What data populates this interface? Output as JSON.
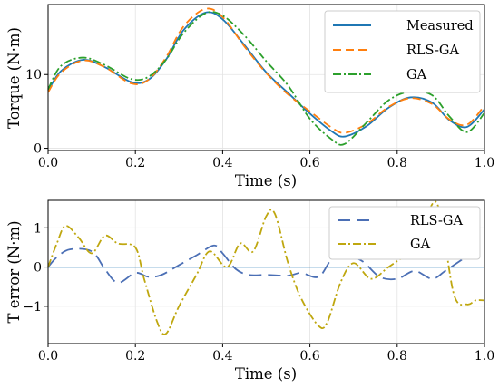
{
  "chart_data": [
    {
      "type": "line",
      "xlabel": "Time (s)",
      "ylabel": "Torque (N·m)",
      "xlim": [
        0,
        1
      ],
      "ylim": [
        -0.3,
        19.5
      ],
      "xticks": [
        0.0,
        0.2,
        0.4,
        0.6,
        0.8,
        1.0
      ],
      "xtick_labels": [
        "0.0",
        "0.2",
        "0.4",
        "0.6",
        "0.8",
        "1.0"
      ],
      "yticks": [
        0,
        10
      ],
      "ytick_labels": [
        "0",
        "10"
      ],
      "grid": true,
      "legend_position": "top-right",
      "x": [
        0.0,
        0.03,
        0.08,
        0.13,
        0.19,
        0.23,
        0.27,
        0.31,
        0.36,
        0.4,
        0.45,
        0.5,
        0.55,
        0.6,
        0.65,
        0.68,
        0.73,
        0.78,
        0.83,
        0.88,
        0.92,
        0.96,
        1.0
      ],
      "series": [
        {
          "name": "Measured",
          "color": "#1f77b4",
          "dash": "solid",
          "values": [
            7.8,
            10.5,
            12.0,
            11.0,
            9.0,
            9.3,
            12.0,
            16.0,
            18.4,
            17.5,
            14.0,
            10.3,
            7.5,
            4.7,
            2.3,
            1.6,
            3.0,
            5.5,
            6.9,
            6.2,
            3.8,
            2.9,
            5.3
          ]
        },
        {
          "name": "RLS-GA",
          "color": "#ff7f0e",
          "dash": "9,5",
          "values": [
            7.6,
            10.3,
            11.9,
            11.0,
            8.8,
            9.3,
            12.3,
            16.5,
            18.9,
            17.8,
            13.8,
            10.2,
            7.3,
            5.0,
            2.8,
            2.1,
            3.3,
            5.6,
            6.8,
            6.0,
            3.9,
            3.2,
            5.8
          ]
        },
        {
          "name": "GA",
          "color": "#2ca02c",
          "dash": "9,3,2,3",
          "values": [
            8.0,
            11.2,
            12.3,
            11.3,
            9.4,
            9.7,
            12.0,
            15.6,
            18.3,
            18.0,
            15.3,
            11.8,
            8.5,
            4.0,
            1.2,
            0.6,
            3.5,
            6.5,
            7.7,
            7.2,
            4.3,
            2.2,
            4.8
          ]
        }
      ]
    },
    {
      "type": "line",
      "xlabel": "Time (s)",
      "ylabel": "T error (N·m)",
      "xlim": [
        0,
        1
      ],
      "ylim": [
        -1.95,
        1.7
      ],
      "xticks": [
        0.0,
        0.2,
        0.4,
        0.6,
        0.8,
        1.0
      ],
      "xtick_labels": [
        "0.0",
        "0.2",
        "0.4",
        "0.6",
        "0.8",
        "1.0"
      ],
      "yticks": [
        -1,
        0,
        1
      ],
      "ytick_labels": [
        "−1",
        "0",
        "1"
      ],
      "grid": true,
      "legend_position": "top-right",
      "zero_line_color": "#1f77b4",
      "series": [
        {
          "name": "RLS-GA",
          "color": "#4b6fb5",
          "dash": "14,7",
          "x": [
            0.0,
            0.02,
            0.05,
            0.1,
            0.13,
            0.16,
            0.2,
            0.23,
            0.26,
            0.3,
            0.34,
            0.38,
            0.4,
            0.43,
            0.46,
            0.5,
            0.55,
            0.58,
            0.62,
            0.65,
            0.68,
            0.72,
            0.76,
            0.8,
            0.84,
            0.88,
            0.91,
            0.95,
            0.98,
            1.0
          ],
          "values": [
            0.0,
            0.25,
            0.45,
            0.4,
            -0.05,
            -0.4,
            -0.15,
            -0.25,
            -0.2,
            0.05,
            0.3,
            0.55,
            0.35,
            -0.05,
            -0.2,
            -0.2,
            -0.22,
            -0.15,
            -0.25,
            0.2,
            0.3,
            0.15,
            -0.25,
            -0.3,
            -0.1,
            -0.3,
            -0.1,
            0.2,
            0.4,
            0.5
          ]
        },
        {
          "name": "GA",
          "color": "#bfa70f",
          "dash": "9,3,2,3",
          "x": [
            0.0,
            0.02,
            0.04,
            0.07,
            0.1,
            0.13,
            0.16,
            0.2,
            0.22,
            0.25,
            0.27,
            0.3,
            0.34,
            0.37,
            0.41,
            0.44,
            0.47,
            0.5,
            0.52,
            0.55,
            0.58,
            0.62,
            0.64,
            0.67,
            0.7,
            0.74,
            0.78,
            0.82,
            0.85,
            0.88,
            0.9,
            0.93,
            0.96,
            0.98,
            1.0
          ],
          "values": [
            0.0,
            0.6,
            1.05,
            0.75,
            0.35,
            0.8,
            0.6,
            0.5,
            -0.3,
            -1.4,
            -1.7,
            -1.0,
            -0.2,
            0.4,
            0.0,
            0.6,
            0.4,
            1.3,
            1.35,
            0.1,
            -0.8,
            -1.5,
            -1.4,
            -0.4,
            0.1,
            -0.3,
            0.0,
            0.3,
            0.5,
            1.6,
            1.3,
            -0.7,
            -0.95,
            -0.85,
            -0.85
          ]
        }
      ]
    }
  ]
}
